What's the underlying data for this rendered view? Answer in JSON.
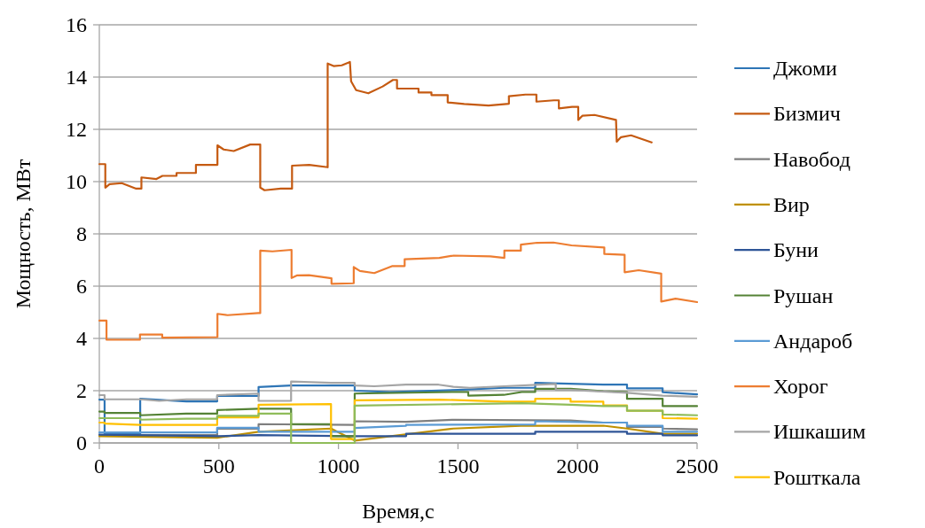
{
  "chart_data": {
    "type": "line",
    "xlabel": "Время,с",
    "ylabel": "Мощность, МВт",
    "xlim": [
      0,
      2500
    ],
    "xticks": [
      0,
      500,
      1000,
      1500,
      2000,
      2500
    ],
    "ylim": [
      0,
      16
    ],
    "yticks": [
      0,
      2,
      4,
      6,
      8,
      10,
      12,
      14,
      16
    ],
    "grid": "y",
    "legend": "right",
    "marker": "none",
    "line_style": "solid",
    "series": [
      {
        "name": "Джоми",
        "color": "#2e75b6",
        "x": [
          0,
          22,
          22,
          171,
          171,
          364,
          493,
          493,
          666,
          666,
          802,
          1068,
          1068,
          1215,
          1500,
          1692,
          1823,
          1823,
          2108,
          2207,
          2207,
          2356,
          2356,
          2500
        ],
        "values": [
          1.66,
          1.66,
          0.35,
          0.35,
          1.69,
          1.59,
          1.59,
          1.8,
          1.8,
          2.14,
          2.2,
          2.2,
          2.0,
          1.95,
          2.03,
          2.11,
          2.11,
          2.3,
          2.23,
          2.23,
          2.09,
          2.09,
          1.94,
          1.86
        ]
      },
      {
        "name": "Бизмич",
        "color": "#c55a11",
        "x": [
          0,
          25,
          25,
          43,
          94,
          154,
          176,
          176,
          239,
          264,
          323,
          323,
          404,
          404,
          494,
          494,
          520,
          562,
          631,
          673,
          673,
          691,
          759,
          806,
          806,
          878,
          955,
          955,
          980,
          1014,
          1048,
          1053,
          1074,
          1125,
          1185,
          1228,
          1245,
          1245,
          1335,
          1335,
          1389,
          1389,
          1457,
          1457,
          1526,
          1628,
          1713,
          1713,
          1782,
          1828,
          1828,
          1901,
          1922,
          1922,
          1977,
          2003,
          2003,
          2020,
          2071,
          2161,
          2164,
          2182,
          2224,
          2310
        ],
        "values": [
          10.67,
          10.67,
          9.77,
          9.9,
          9.94,
          9.73,
          9.73,
          10.16,
          10.1,
          10.22,
          10.22,
          10.33,
          10.33,
          10.64,
          10.64,
          11.39,
          11.23,
          11.17,
          11.42,
          11.42,
          9.77,
          9.67,
          9.73,
          9.73,
          10.61,
          10.64,
          10.55,
          14.52,
          14.42,
          14.45,
          14.58,
          13.84,
          13.5,
          13.38,
          13.64,
          13.89,
          13.89,
          13.56,
          13.56,
          13.41,
          13.41,
          13.31,
          13.31,
          13.03,
          12.97,
          12.91,
          12.98,
          13.27,
          13.33,
          13.33,
          13.06,
          13.11,
          13.11,
          12.8,
          12.86,
          12.86,
          12.36,
          12.52,
          12.55,
          12.36,
          11.53,
          11.7,
          11.77,
          11.5
        ]
      },
      {
        "name": "Навобод",
        "color": "#7f7f7f",
        "x": [
          0,
          493,
          493,
          666,
          666,
          1068,
          1068,
          1283,
          1481,
          1971,
          2108,
          2207,
          2207,
          2356,
          2356,
          2500
        ],
        "values": [
          0.3,
          0.3,
          0.55,
          0.55,
          0.72,
          0.69,
          0.83,
          0.81,
          0.89,
          0.86,
          0.78,
          0.78,
          0.61,
          0.61,
          0.55,
          0.52
        ]
      },
      {
        "name": "Вир",
        "color": "#bf9000",
        "x": [
          0,
          493,
          493,
          666,
          666,
          969,
          969,
          1068,
          1068,
          1481,
          1763,
          2108,
          2207,
          2207,
          2356,
          2356,
          2500
        ],
        "values": [
          0.26,
          0.2,
          0.2,
          0.43,
          0.43,
          0.55,
          0.55,
          0.09,
          0.09,
          0.55,
          0.66,
          0.66,
          0.55,
          0.55,
          0.35,
          0.35,
          0.35
        ]
      },
      {
        "name": "Буни",
        "color": "#2f5597",
        "x": [
          0,
          493,
          493,
          666,
          666,
          1068,
          1215,
          1283,
          1283,
          1823,
          1823,
          2207,
          2207,
          2356,
          2356,
          2500
        ],
        "values": [
          0.32,
          0.26,
          0.26,
          0.3,
          0.3,
          0.26,
          0.26,
          0.26,
          0.35,
          0.35,
          0.43,
          0.43,
          0.35,
          0.35,
          0.29,
          0.29
        ]
      },
      {
        "name": "Рушан",
        "color": "#548235",
        "x": [
          0,
          22,
          22,
          171,
          171,
          364,
          493,
          493,
          666,
          802,
          802,
          969,
          969,
          1068,
          1068,
          1475,
          1543,
          1543,
          1692,
          1767,
          1823,
          1823,
          1971,
          2108,
          2207,
          2207,
          2356,
          2356,
          2500
        ],
        "values": [
          1.2,
          1.2,
          1.15,
          1.15,
          1.06,
          1.12,
          1.12,
          1.26,
          1.31,
          1.31,
          0.72,
          0.72,
          0.26,
          0.26,
          1.89,
          1.95,
          1.95,
          1.81,
          1.84,
          1.95,
          1.95,
          2.07,
          2.07,
          1.98,
          1.95,
          1.69,
          1.69,
          1.41,
          1.41
        ]
      },
      {
        "name": "Андароб",
        "color": "#5b9bd5",
        "x": [
          0,
          493,
          493,
          666,
          666,
          1068,
          1068,
          1283,
          1283,
          1823,
          1823,
          2108,
          2207,
          2207,
          2356,
          2356,
          2500
        ],
        "values": [
          0.4,
          0.4,
          0.58,
          0.58,
          0.43,
          0.43,
          0.57,
          0.66,
          0.69,
          0.71,
          0.83,
          0.78,
          0.78,
          0.66,
          0.66,
          0.43,
          0.43
        ]
      },
      {
        "name": "Хорог",
        "color": "#ed7d31",
        "x": [
          0,
          30,
          30,
          170,
          170,
          263,
          263,
          494,
          494,
          536,
          664,
          673,
          673,
          724,
          804,
          804,
          826,
          877,
          971,
          971,
          1064,
          1064,
          1090,
          1150,
          1226,
          1277,
          1277,
          1422,
          1482,
          1635,
          1694,
          1694,
          1763,
          1763,
          1831,
          1899,
          1975,
          2112,
          2112,
          2197,
          2197,
          2256,
          2350,
          2350,
          2410,
          2500
        ],
        "values": [
          4.68,
          4.68,
          3.95,
          3.95,
          4.15,
          4.15,
          4.03,
          4.05,
          4.94,
          4.89,
          4.97,
          4.97,
          7.36,
          7.33,
          7.39,
          6.31,
          6.41,
          6.42,
          6.3,
          6.09,
          6.11,
          6.73,
          6.58,
          6.5,
          6.77,
          6.77,
          7.03,
          7.08,
          7.17,
          7.14,
          7.08,
          7.36,
          7.36,
          7.59,
          7.66,
          7.67,
          7.56,
          7.48,
          7.23,
          7.2,
          6.53,
          6.61,
          6.48,
          5.41,
          5.52,
          5.39
        ]
      },
      {
        "name": "Ишкашим",
        "color": "#a5a5a5",
        "x": [
          0,
          22,
          22,
          171,
          250,
          364,
          493,
          493,
          666,
          666,
          802,
          802,
          969,
          1068,
          1068,
          1150,
          1283,
          1419,
          1481,
          1550,
          1692,
          1909,
          1909,
          1971,
          2207,
          2356,
          2500
        ],
        "values": [
          1.83,
          1.83,
          1.67,
          1.67,
          1.61,
          1.67,
          1.67,
          1.83,
          1.89,
          1.61,
          1.61,
          2.35,
          2.3,
          2.3,
          2.2,
          2.17,
          2.23,
          2.23,
          2.15,
          2.11,
          2.17,
          2.26,
          2.03,
          2.03,
          1.92,
          1.81,
          1.77
        ]
      },
      {
        "name": "Рошткала",
        "color": "#ffc000",
        "x": [
          0,
          22,
          22,
          171,
          364,
          493,
          493,
          666,
          666,
          969,
          969,
          1068,
          1068,
          1422,
          1692,
          1823,
          1823,
          1971,
          1971,
          2108,
          2108,
          2207,
          2207,
          2356,
          2356,
          2500
        ],
        "values": [
          0.78,
          0.78,
          0.74,
          0.69,
          0.69,
          0.69,
          0.98,
          0.98,
          1.46,
          1.49,
          0.15,
          0.15,
          1.63,
          1.66,
          1.58,
          1.58,
          1.69,
          1.69,
          1.58,
          1.58,
          1.44,
          1.44,
          1.23,
          1.23,
          0.95,
          0.93
        ]
      },
      {
        "color": "#8fbc5a",
        "x": [
          0,
          171,
          171,
          364,
          493,
          493,
          666,
          666,
          802,
          802,
          1068,
          1068,
          1767,
          1971,
          2108,
          2207,
          2207,
          2356,
          2356,
          2500
        ],
        "values": [
          0.95,
          0.95,
          0.89,
          0.93,
          0.93,
          1.04,
          1.04,
          1.12,
          1.12,
          0.0,
          0.0,
          1.43,
          1.52,
          1.46,
          1.41,
          1.41,
          1.23,
          1.23,
          1.09,
          1.06
        ]
      }
    ]
  }
}
